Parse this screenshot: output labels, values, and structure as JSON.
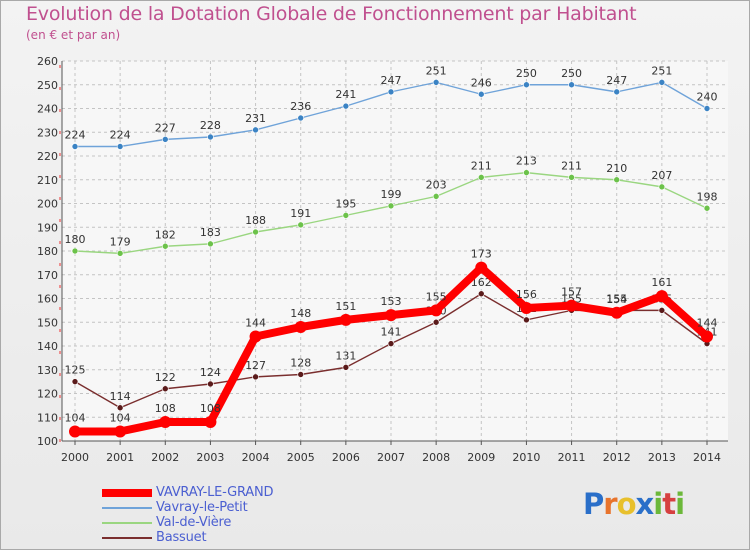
{
  "chart_data": {
    "type": "line",
    "title": "Evolution de la Dotation Globale de Fonctionnement par Habitant",
    "subtitle": "(en € et par an)",
    "x": [
      "2000",
      "2001",
      "2002",
      "2003",
      "2004",
      "2005",
      "2006",
      "2007",
      "2008",
      "2009",
      "2010",
      "2011",
      "2012",
      "2013",
      "2014"
    ],
    "y_ticks": [
      100,
      110,
      120,
      130,
      140,
      150,
      160,
      170,
      180,
      190,
      200,
      210,
      220,
      230,
      240,
      250,
      260
    ],
    "ylim": [
      100,
      260
    ],
    "grid": true,
    "series": [
      {
        "name": "Vavray-le-Petit",
        "color": "#6fa3d9",
        "marker": "#3b83c4",
        "values": [
          224,
          224,
          227,
          228,
          231,
          236,
          241,
          247,
          251,
          246,
          250,
          250,
          247,
          251,
          240
        ]
      },
      {
        "name": "Val-de-Vière",
        "color": "#9ad680",
        "marker": "#6cc24a",
        "values": [
          180,
          179,
          182,
          183,
          188,
          191,
          195,
          199,
          203,
          211,
          213,
          211,
          210,
          207,
          198
        ]
      },
      {
        "name": "Bassuet",
        "color": "#7a2e2e",
        "marker": "#5a1a1a",
        "values": [
          125,
          114,
          122,
          124,
          127,
          128,
          131,
          141,
          150,
          162,
          151,
          155,
          155,
          155,
          141
        ]
      },
      {
        "name": "VAVRAY-LE-GRAND",
        "color": "#ff0000",
        "marker": "#ff0000",
        "values": [
          104,
          104,
          108,
          108,
          144,
          148,
          151,
          153,
          155,
          173,
          156,
          157,
          154,
          161,
          144
        ]
      }
    ],
    "legend": [
      "VAVRAY-LE-GRAND",
      "Vavray-le-Petit",
      "Val-de-Vière",
      "Bassuet"
    ]
  },
  "logo": {
    "letters": [
      "P",
      "r",
      "o",
      "x",
      "i",
      "t",
      "i"
    ],
    "colors": [
      "#2a6fc9",
      "#e8742c",
      "#e8c02c",
      "#2a6fc9",
      "#6cb83a",
      "#d64040",
      "#6cb83a"
    ]
  }
}
